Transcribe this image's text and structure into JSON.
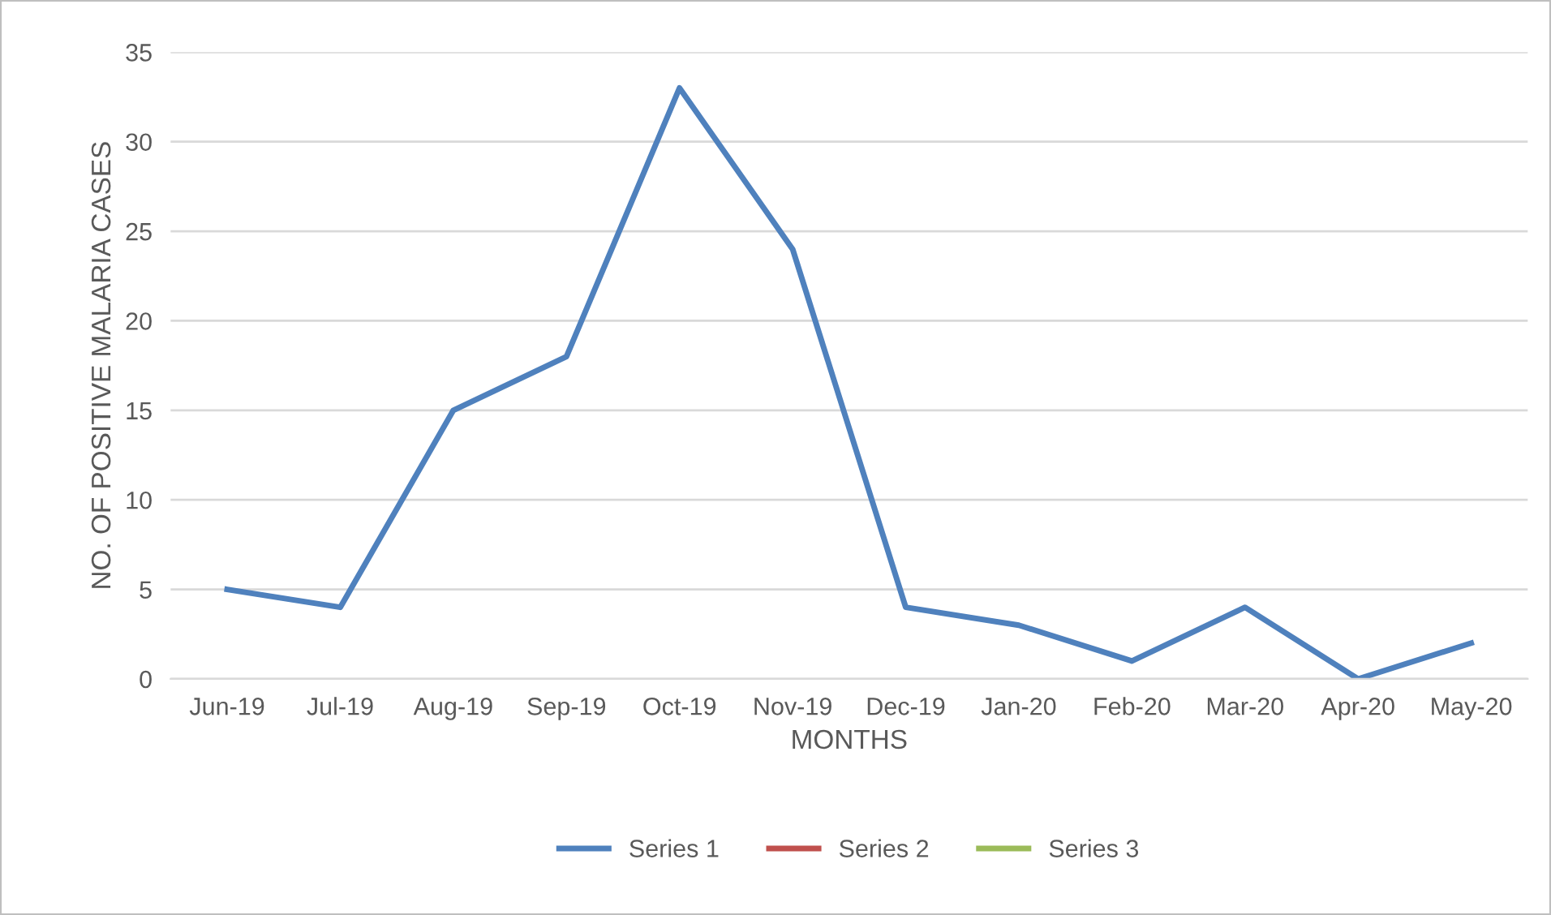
{
  "chart_data": {
    "type": "line",
    "xlabel": "MONTHS",
    "ylabel": "NO. OF POSITIVE MALARIA CASES",
    "categories": [
      "Jun-19",
      "Jul-19",
      "Aug-19",
      "Sep-19",
      "Oct-19",
      "Nov-19",
      "Dec-19",
      "Jan-20",
      "Feb-20",
      "Mar-20",
      "Apr-20",
      "May-20"
    ],
    "series": [
      {
        "name": "Series 1",
        "color": "#4f81bd",
        "values": [
          5,
          4,
          15,
          18,
          33,
          24,
          4,
          3,
          1,
          4,
          0,
          2
        ]
      },
      {
        "name": "Series 2",
        "color": "#c0504d",
        "values": [
          null,
          null,
          null,
          null,
          null,
          null,
          null,
          null,
          null,
          null,
          null,
          null
        ]
      },
      {
        "name": "Series 3",
        "color": "#9bbb59",
        "values": [
          null,
          null,
          null,
          null,
          null,
          null,
          null,
          null,
          null,
          null,
          null,
          null
        ]
      }
    ],
    "ylim": [
      0,
      35
    ],
    "yticks": [
      0,
      5,
      10,
      15,
      20,
      25,
      30,
      35
    ],
    "grid": "y",
    "legend": "bottom",
    "marker": "none",
    "line_style": "solid"
  }
}
